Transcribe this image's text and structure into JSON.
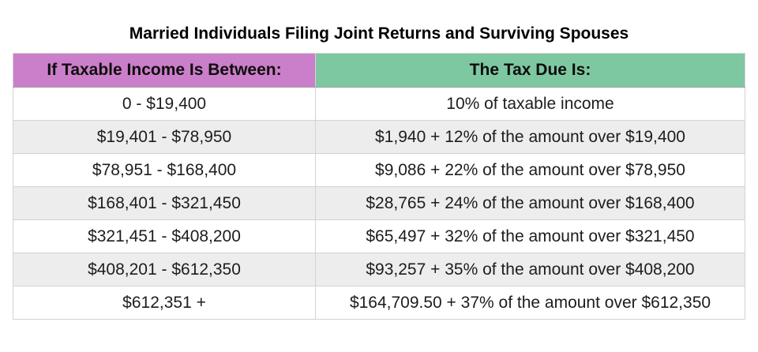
{
  "page": {
    "title": "Married Individuals Filing Joint Returns and Surviving Spouses"
  },
  "table": {
    "headers": {
      "income": "If Taxable Income Is Between:",
      "tax": "The Tax Due Is:"
    },
    "rows": [
      {
        "income": "0 - $19,400",
        "tax": "10% of taxable income"
      },
      {
        "income": "$19,401 - $78,950",
        "tax": "$1,940 + 12% of the amount over $19,400"
      },
      {
        "income": "$78,951 - $168,400",
        "tax": "$9,086 + 22% of the amount over $78,950"
      },
      {
        "income": "$168,401 - $321,450",
        "tax": "$28,765 + 24% of the amount over $168,400"
      },
      {
        "income": "$321,451 - $408,200",
        "tax": "$65,497 + 32% of the amount over $321,450"
      },
      {
        "income": "$408,201 - $612,350",
        "tax": "$93,257 + 35% of the amount over $408,200"
      },
      {
        "income": "$612,351 +",
        "tax": "$164,709.50 + 37% of the amount over $612,350"
      }
    ],
    "colors": {
      "header_income_bg": "#cb7ec9",
      "header_tax_bg": "#7ec8a1",
      "row_alt_bg": "#ededed",
      "border_inner": "#d2d2d2",
      "border_outer": "#c3c3c3"
    }
  }
}
